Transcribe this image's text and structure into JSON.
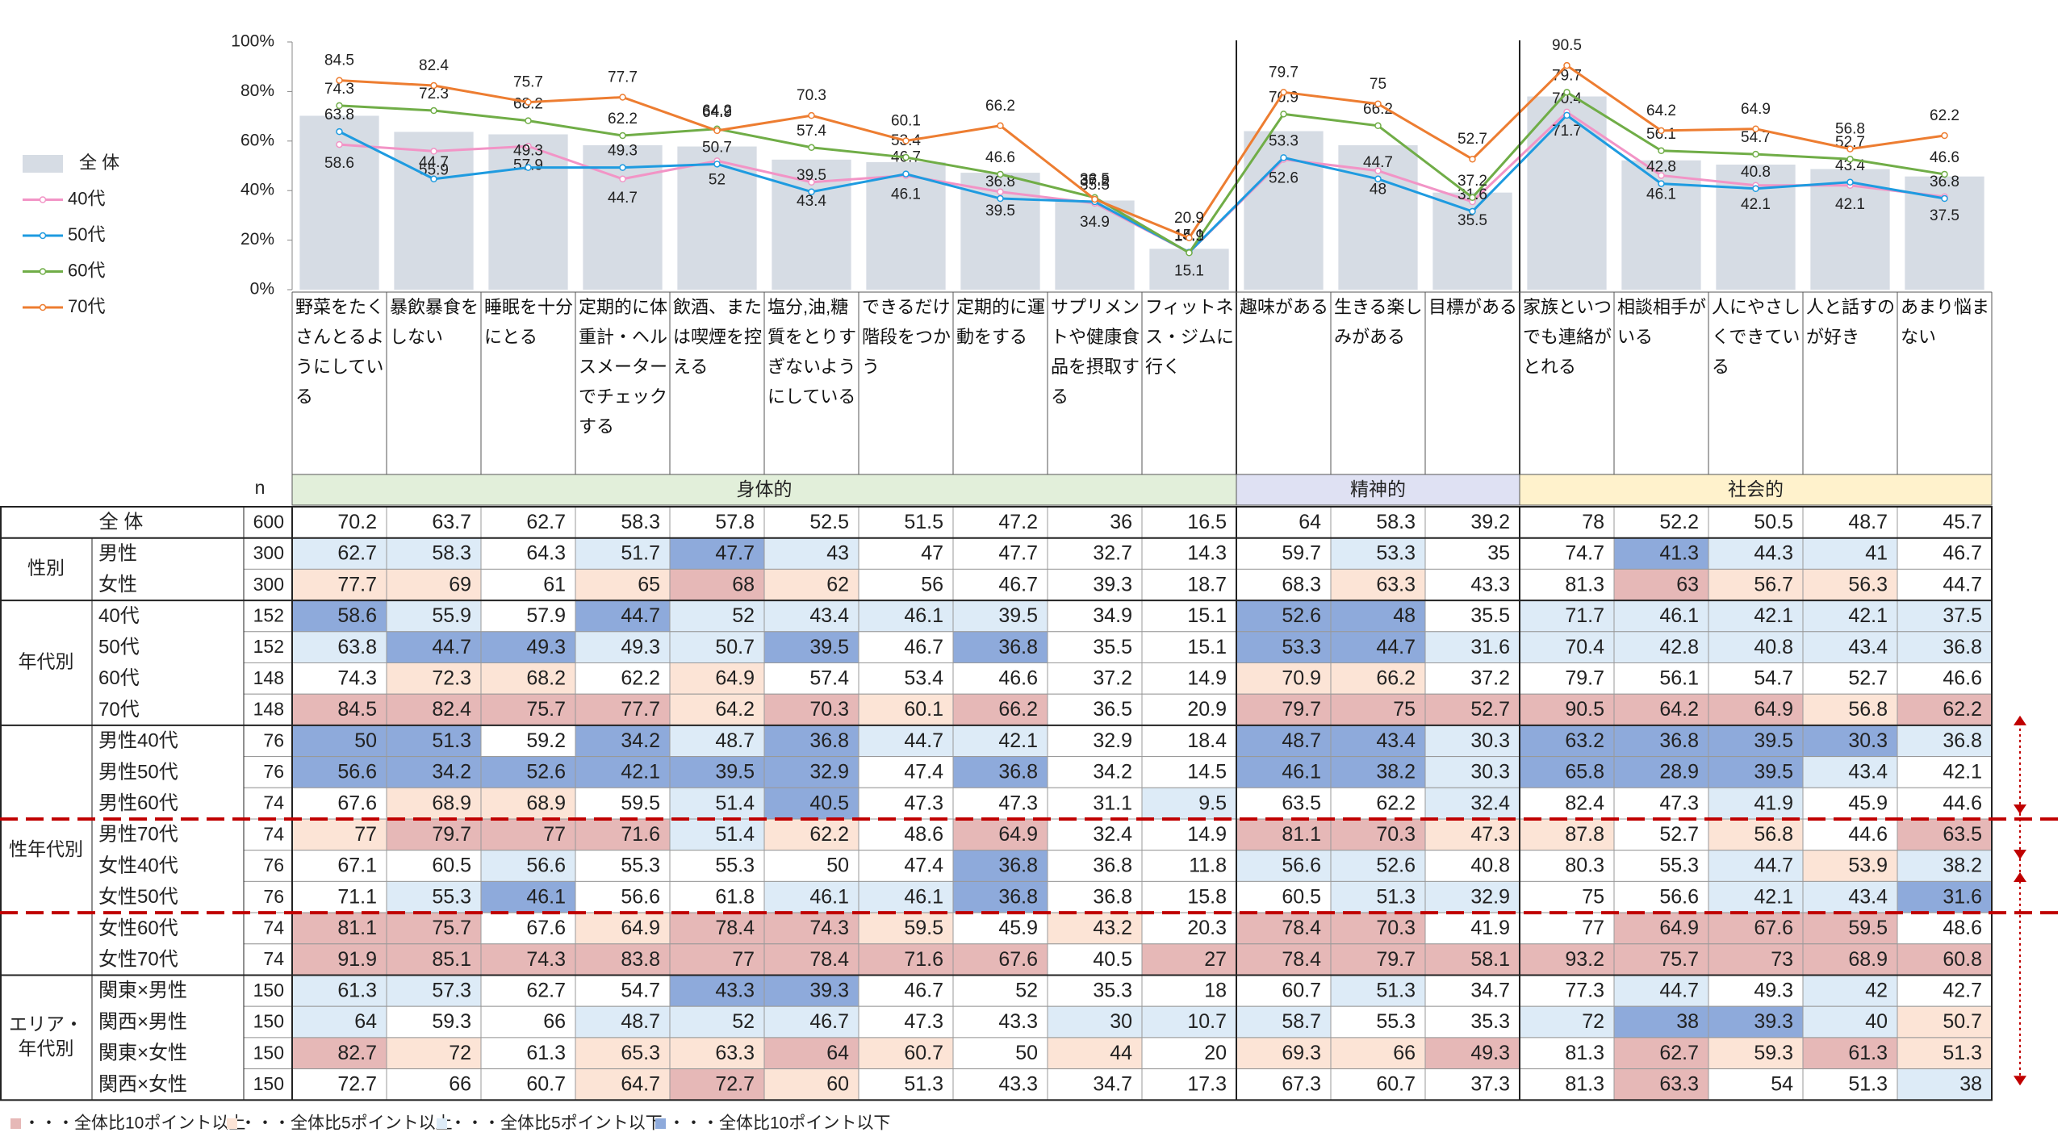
{
  "chart_data": {
    "type": "bar_line",
    "categories": [
      "野菜をたくさんとるようにしている",
      "暴飲暴食をしない",
      "睡眠を十分にとる",
      "定期的に体重計・ヘルスメーターでチェックする",
      "飲酒、または喫煙を控える",
      "塩分,油,糖質をとりすぎないようにしている",
      "できるだけ階段をつかう",
      "定期的に運動をする",
      "サプリメントや健康食品を摂取する",
      "フィットネス・ジムに行く",
      "趣味がある",
      "生きる楽しみがある",
      "目標がある",
      "家族といつでも連絡がとれる",
      "相談相手がいる",
      "人にやさしくできている",
      "人と話すのが好き",
      "あまり悩まない"
    ],
    "groups": [
      {
        "name": "身体的",
        "span": 10,
        "color": "#e2efda"
      },
      {
        "name": "精神的",
        "span": 3,
        "color": "#dfe1f3"
      },
      {
        "name": "社会的",
        "span": 5,
        "color": "#fff2cc"
      }
    ],
    "ylim": [
      0,
      100
    ],
    "yticks": [
      {
        "value": 0,
        "label": "0%"
      },
      {
        "value": 20,
        "label": "20%"
      },
      {
        "value": 40,
        "label": "40%"
      },
      {
        "value": 60,
        "label": "60%"
      },
      {
        "value": 80,
        "label": "80%"
      },
      {
        "value": 100,
        "label": "100%"
      }
    ],
    "series": [
      {
        "name": "全 体",
        "type": "bar",
        "color": "#d6dce4",
        "values": [
          70.2,
          63.7,
          62.7,
          58.3,
          57.8,
          52.5,
          51.5,
          47.2,
          36.0,
          16.5,
          64.0,
          58.3,
          39.2,
          78.0,
          52.2,
          50.5,
          48.7,
          45.7
        ]
      },
      {
        "name": "40代",
        "type": "line",
        "color": "#f294c6",
        "values": [
          58.6,
          55.9,
          57.9,
          44.7,
          52.0,
          43.4,
          46.1,
          39.5,
          34.9,
          15.1,
          52.6,
          48.0,
          35.5,
          71.7,
          46.1,
          42.1,
          42.1,
          37.5
        ]
      },
      {
        "name": "50代",
        "type": "line",
        "color": "#1e9be0",
        "values": [
          63.8,
          44.7,
          49.3,
          49.3,
          50.7,
          39.5,
          46.7,
          36.8,
          35.5,
          15.1,
          53.3,
          44.7,
          31.6,
          70.4,
          42.8,
          40.8,
          43.4,
          36.8
        ]
      },
      {
        "name": "60代",
        "type": "line",
        "color": "#70ad47",
        "values": [
          74.3,
          72.3,
          68.2,
          62.2,
          64.9,
          57.4,
          53.4,
          46.6,
          37.2,
          14.9,
          70.9,
          66.2,
          37.2,
          79.7,
          56.1,
          54.7,
          52.7,
          46.6
        ]
      },
      {
        "name": "70代",
        "type": "line",
        "color": "#ed7d31",
        "values": [
          84.5,
          82.4,
          75.7,
          77.7,
          64.2,
          70.3,
          60.1,
          66.2,
          36.5,
          20.9,
          79.7,
          75.0,
          52.7,
          90.5,
          64.2,
          64.9,
          56.8,
          62.2
        ]
      }
    ]
  },
  "table": {
    "n_header": "n",
    "total": {
      "label": "全 体",
      "n": 600,
      "values": [
        70.2,
        63.7,
        62.7,
        58.3,
        57.8,
        52.5,
        51.5,
        47.2,
        36.0,
        16.5,
        64.0,
        58.3,
        39.2,
        78.0,
        52.2,
        50.5,
        48.7,
        45.7
      ]
    },
    "sections": [
      {
        "label": "性別",
        "rows": [
          {
            "label": "男性",
            "n": 300,
            "values": [
              62.7,
              58.3,
              64.3,
              51.7,
              47.7,
              43.0,
              47.0,
              47.7,
              32.7,
              14.3,
              59.7,
              53.3,
              35.0,
              74.7,
              41.3,
              44.3,
              41.0,
              46.7
            ]
          },
          {
            "label": "女性",
            "n": 300,
            "values": [
              77.7,
              69.0,
              61.0,
              65.0,
              68.0,
              62.0,
              56.0,
              46.7,
              39.3,
              18.7,
              68.3,
              63.3,
              43.3,
              81.3,
              63.0,
              56.7,
              56.3,
              44.7
            ]
          }
        ]
      },
      {
        "label": "年代別",
        "rows": [
          {
            "label": "40代",
            "n": 152,
            "values": [
              58.6,
              55.9,
              57.9,
              44.7,
              52.0,
              43.4,
              46.1,
              39.5,
              34.9,
              15.1,
              52.6,
              48.0,
              35.5,
              71.7,
              46.1,
              42.1,
              42.1,
              37.5
            ]
          },
          {
            "label": "50代",
            "n": 152,
            "values": [
              63.8,
              44.7,
              49.3,
              49.3,
              50.7,
              39.5,
              46.7,
              36.8,
              35.5,
              15.1,
              53.3,
              44.7,
              31.6,
              70.4,
              42.8,
              40.8,
              43.4,
              36.8
            ]
          },
          {
            "label": "60代",
            "n": 148,
            "values": [
              74.3,
              72.3,
              68.2,
              62.2,
              64.9,
              57.4,
              53.4,
              46.6,
              37.2,
              14.9,
              70.9,
              66.2,
              37.2,
              79.7,
              56.1,
              54.7,
              52.7,
              46.6
            ]
          },
          {
            "label": "70代",
            "n": 148,
            "values": [
              84.5,
              82.4,
              75.7,
              77.7,
              64.2,
              70.3,
              60.1,
              66.2,
              36.5,
              20.9,
              79.7,
              75.0,
              52.7,
              90.5,
              64.2,
              64.9,
              56.8,
              62.2
            ]
          }
        ]
      },
      {
        "label": "性年代別",
        "rows": [
          {
            "label": "男性40代",
            "n": 76,
            "values": [
              50.0,
              51.3,
              59.2,
              34.2,
              48.7,
              36.8,
              44.7,
              42.1,
              32.9,
              18.4,
              48.7,
              43.4,
              30.3,
              63.2,
              36.8,
              39.5,
              30.3,
              36.8
            ]
          },
          {
            "label": "男性50代",
            "n": 76,
            "values": [
              56.6,
              34.2,
              52.6,
              42.1,
              39.5,
              32.9,
              47.4,
              36.8,
              34.2,
              14.5,
              46.1,
              38.2,
              30.3,
              65.8,
              28.9,
              39.5,
              43.4,
              42.1
            ]
          },
          {
            "label": "男性60代",
            "n": 74,
            "values": [
              67.6,
              68.9,
              68.9,
              59.5,
              51.4,
              40.5,
              47.3,
              47.3,
              31.1,
              9.5,
              63.5,
              62.2,
              32.4,
              82.4,
              47.3,
              41.9,
              45.9,
              44.6
            ]
          },
          {
            "label": "男性70代",
            "n": 74,
            "values": [
              77.0,
              79.7,
              77.0,
              71.6,
              51.4,
              62.2,
              48.6,
              64.9,
              32.4,
              14.9,
              81.1,
              70.3,
              47.3,
              87.8,
              52.7,
              56.8,
              44.6,
              63.5
            ]
          },
          {
            "label": "女性40代",
            "n": 76,
            "values": [
              67.1,
              60.5,
              56.6,
              55.3,
              55.3,
              50.0,
              47.4,
              36.8,
              36.8,
              11.8,
              56.6,
              52.6,
              40.8,
              80.3,
              55.3,
              44.7,
              53.9,
              38.2
            ]
          },
          {
            "label": "女性50代",
            "n": 76,
            "values": [
              71.1,
              55.3,
              46.1,
              56.6,
              61.8,
              46.1,
              46.1,
              36.8,
              36.8,
              15.8,
              60.5,
              51.3,
              32.9,
              75.0,
              56.6,
              42.1,
              43.4,
              31.6
            ]
          },
          {
            "label": "女性60代",
            "n": 74,
            "values": [
              81.1,
              75.7,
              67.6,
              64.9,
              78.4,
              74.3,
              59.5,
              45.9,
              43.2,
              20.3,
              78.4,
              70.3,
              41.9,
              77.0,
              64.9,
              67.6,
              59.5,
              48.6
            ]
          },
          {
            "label": "女性70代",
            "n": 74,
            "values": [
              91.9,
              85.1,
              74.3,
              83.8,
              77.0,
              78.4,
              71.6,
              67.6,
              40.5,
              27.0,
              78.4,
              79.7,
              58.1,
              93.2,
              75.7,
              73.0,
              68.9,
              60.8
            ]
          }
        ]
      },
      {
        "label": "エリア・\n年代別",
        "rows": [
          {
            "label": "関東×男性",
            "n": 150,
            "values": [
              61.3,
              57.3,
              62.7,
              54.7,
              43.3,
              39.3,
              46.7,
              52.0,
              35.3,
              18.0,
              60.7,
              51.3,
              34.7,
              77.3,
              44.7,
              49.3,
              42.0,
              42.7
            ]
          },
          {
            "label": "関西×男性",
            "n": 150,
            "values": [
              64.0,
              59.3,
              66.0,
              48.7,
              52.0,
              46.7,
              47.3,
              43.3,
              30.0,
              10.7,
              58.7,
              55.3,
              35.3,
              72.0,
              38.0,
              39.3,
              40.0,
              50.7
            ]
          },
          {
            "label": "関東×女性",
            "n": 150,
            "values": [
              82.7,
              72.0,
              61.3,
              65.3,
              63.3,
              64.0,
              60.7,
              50.0,
              44.0,
              20.0,
              69.3,
              66.0,
              49.3,
              81.3,
              62.7,
              59.3,
              61.3,
              51.3
            ]
          },
          {
            "label": "関西×女性",
            "n": 150,
            "values": [
              72.7,
              66.0,
              60.7,
              64.7,
              72.7,
              60.0,
              51.3,
              43.3,
              34.7,
              17.3,
              67.3,
              60.7,
              37.3,
              81.3,
              63.3,
              54.0,
              51.3,
              38.0
            ]
          }
        ]
      }
    ],
    "legend": [
      {
        "label": "・・・全体比10ポイント以上",
        "color": "#e6b8b7"
      },
      {
        "label": "・・・全体比5ポイント以上",
        "color": "#fce4d6"
      },
      {
        "label": "・・・全体比5ポイント以下",
        "color": "#ddebf7"
      },
      {
        "label": "・・・全体比10ポイント以下",
        "color": "#8eaadb"
      }
    ]
  }
}
